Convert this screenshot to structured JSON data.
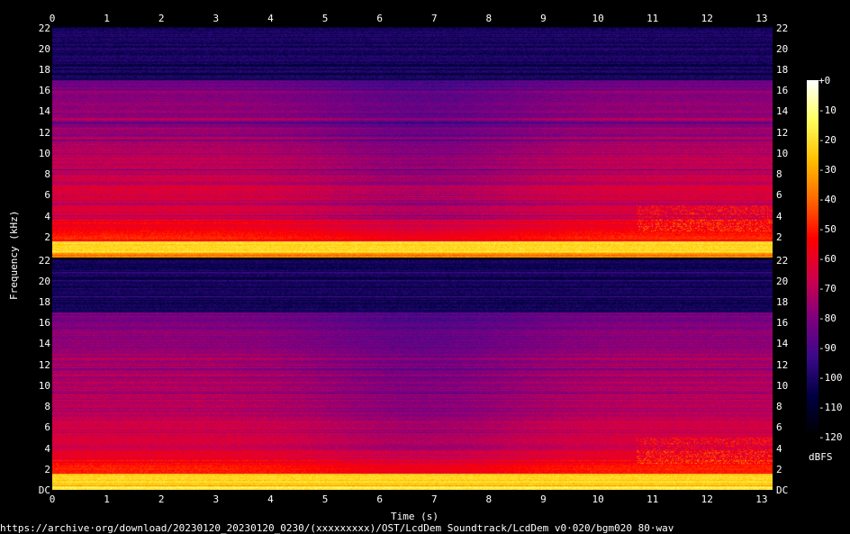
{
  "chart_data": {
    "type": "heatmap",
    "xlabel": "Time (s)",
    "ylabel": "Frequency (kHz)",
    "x_ticks": [
      "0",
      "1",
      "2",
      "3",
      "4",
      "5",
      "6",
      "7",
      "8",
      "9",
      "10",
      "11",
      "12",
      "13"
    ],
    "xlim": [
      0,
      13.2
    ],
    "channels": [
      {
        "y_ticks": [
          "2",
          "4",
          "6",
          "8",
          "10",
          "12",
          "14",
          "16",
          "18",
          "20",
          "22"
        ],
        "ylim": [
          0,
          22.05
        ]
      },
      {
        "y_ticks": [
          "DC",
          "2",
          "4",
          "6",
          "8",
          "10",
          "12",
          "14",
          "16",
          "18",
          "20",
          "22"
        ],
        "ylim": [
          0,
          22.05
        ]
      }
    ],
    "colorbar": {
      "label": "dBFS",
      "range": [
        -120,
        0
      ],
      "ticks": [
        "+0",
        "-10",
        "-20",
        "-30",
        "-40",
        "-50",
        "-60",
        "-70",
        "-80",
        "-90",
        "-100",
        "-110",
        "-120"
      ]
    },
    "colormap": [
      "#000000",
      "#000040",
      "#3a0a8a",
      "#800080",
      "#d0004a",
      "#ff0000",
      "#ff6a00",
      "#ffc000",
      "#ffff60",
      "#ffffff"
    ]
  },
  "footer": {
    "source": "https://archive·org/download/20230120_20230120_0230/(xxxxxxxxx)/OST/LcdDem Soundtrack/LcdDem v0·020/bgm020 80·wav"
  }
}
